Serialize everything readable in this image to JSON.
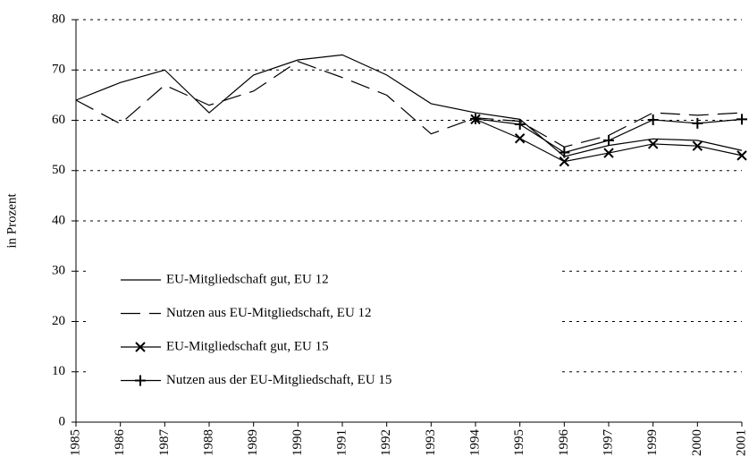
{
  "chart_data": {
    "type": "line",
    "y_label": "in Prozent",
    "categories": [
      "1985",
      "1986",
      "1987",
      "1988",
      "1989",
      "1990",
      "1991",
      "1992",
      "1993",
      "1994",
      "1995",
      "1996",
      "1997",
      "1999",
      "2000",
      "2001"
    ],
    "series": [
      {
        "name": "EU-Mitgliedschaft gut, EU 12",
        "color": "#000000",
        "style": "solid",
        "marker": "none",
        "values": [
          64,
          67.5,
          70,
          61.5,
          69,
          72,
          73,
          69,
          63.3,
          61.5,
          60.2,
          52.8,
          55,
          56.3,
          56,
          54
        ]
      },
      {
        "name": "Nutzen aus EU-Mitgliedschaft, EU 12",
        "color": "#000000",
        "style": "dashed",
        "marker": "none",
        "values": [
          64,
          59.3,
          67,
          63,
          65.8,
          71.7,
          68.5,
          65,
          57.3,
          60.5,
          59.8,
          54.7,
          57,
          61.5,
          61,
          61.5
        ]
      },
      {
        "name": "EU-Mitgliedschaft gut, EU 15",
        "color": "#000000",
        "style": "solid",
        "marker": "x",
        "values": [
          null,
          null,
          null,
          null,
          null,
          null,
          null,
          null,
          null,
          60.2,
          56.4,
          51.8,
          53.5,
          55.3,
          54.9,
          53
        ]
      },
      {
        "name": "Nutzen aus der EU-Mitgliedschaft, EU 15",
        "color": "#000000",
        "style": "solid",
        "marker": "+",
        "values": [
          null,
          null,
          null,
          null,
          null,
          null,
          null,
          null,
          null,
          60.3,
          59.2,
          53.6,
          56,
          60.1,
          59.4,
          60.2
        ]
      }
    ],
    "ylim": [
      0,
      80
    ],
    "yticks": [
      0,
      10,
      20,
      30,
      40,
      50,
      60,
      70,
      80
    ],
    "grid": true,
    "legend": "lower left"
  }
}
